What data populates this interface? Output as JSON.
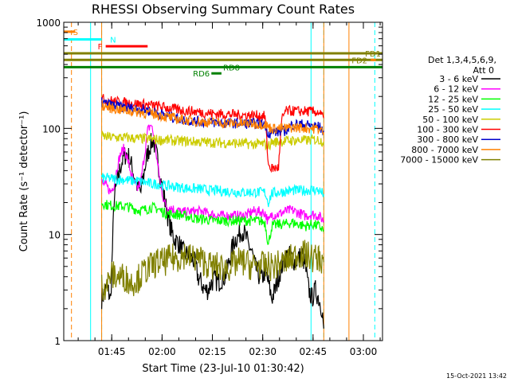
{
  "chart_data": {
    "type": "line",
    "title": "RHESSI Observing Summary Count Rates",
    "xlabel": "Start Time (23-Jul-10 01:30:42)",
    "ylabel": "Count Rate (s⁻¹ detector⁻¹)",
    "yscale": "log",
    "xlim": [
      0.0,
      95.0
    ],
    "ylim": [
      1,
      1000
    ],
    "x_ticks": [
      {
        "value": 14.3,
        "label": "01:45"
      },
      {
        "value": 29.3,
        "label": "02:00"
      },
      {
        "value": 44.3,
        "label": "02:15"
      },
      {
        "value": 59.3,
        "label": "02:30"
      },
      {
        "value": 74.3,
        "label": "02:45"
      },
      {
        "value": 89.3,
        "label": "03:00"
      }
    ],
    "y_ticks": [
      {
        "value": 1,
        "label": "1"
      },
      {
        "value": 10,
        "label": "10"
      },
      {
        "value": 100,
        "label": "100"
      },
      {
        "value": 1000,
        "label": "1000"
      }
    ],
    "legend_title": "Det 1,3,4,5,6,9,",
    "legend_subtitle": "Att 0",
    "footer": "15-Oct-2021 13:42",
    "series": [
      {
        "name": "3 - 6 keV",
        "color": "#000000",
        "x": [
          11.3,
          13,
          14,
          15,
          17,
          18,
          19,
          20,
          21,
          22,
          23,
          24,
          25,
          26,
          26.7,
          27,
          28,
          29,
          30,
          31,
          32,
          33,
          34,
          35,
          36,
          37,
          38,
          39,
          40,
          41,
          42,
          43,
          44,
          45,
          46,
          47,
          48,
          49,
          50,
          51,
          52,
          53,
          54,
          55,
          56,
          57,
          58,
          59,
          60,
          61,
          62,
          63,
          64,
          65,
          66,
          67,
          68,
          69,
          70,
          71,
          72,
          73,
          74,
          75,
          76,
          77,
          77.5
        ],
        "y": [
          2.5,
          3.2,
          2.4,
          22,
          45,
          55,
          58,
          47,
          36,
          28,
          25,
          40,
          58,
          72,
          80,
          70,
          50,
          32,
          22,
          15,
          11,
          9,
          8.5,
          7.5,
          6.5,
          6.5,
          6,
          5.5,
          4,
          3.5,
          3,
          3,
          3.5,
          3.8,
          3.5,
          3.8,
          4,
          5,
          7,
          9,
          9.5,
          11,
          10,
          8,
          7,
          5,
          4.2,
          3.8,
          4.5,
          3.5,
          2.5,
          3,
          4,
          5,
          6,
          6.5,
          6,
          5.5,
          6,
          6.5,
          5,
          3,
          2.5,
          3,
          2.5,
          2,
          1.3
        ]
      },
      {
        "name": "6 - 12 keV",
        "color": "#ff00ff",
        "x": [
          11.3,
          13,
          14,
          15,
          16,
          17,
          18,
          19,
          20,
          21,
          22,
          23,
          24,
          25,
          26,
          27,
          28,
          29,
          30,
          31,
          32,
          33,
          34,
          35,
          38,
          41,
          44,
          47,
          50,
          53,
          55,
          56,
          58,
          60,
          61,
          62,
          64,
          66,
          68,
          70,
          72,
          74,
          76,
          77.5
        ],
        "y": [
          31,
          28,
          25,
          30,
          45,
          58,
          65,
          52,
          38,
          30,
          27,
          32,
          55,
          95,
          110,
          80,
          45,
          28,
          20,
          18,
          18,
          17,
          17,
          16,
          16.5,
          16.5,
          15.5,
          15,
          15,
          15,
          15.5,
          16.5,
          16.5,
          16,
          13,
          15.5,
          15.5,
          16.5,
          17,
          16,
          15,
          15.5,
          15,
          13.5
        ]
      },
      {
        "name": "12 - 25 keV",
        "color": "#00ff00",
        "x": [
          11.3,
          13,
          16,
          18,
          20,
          22,
          24,
          26,
          28,
          30,
          32,
          34,
          36,
          38,
          40,
          42,
          44,
          46,
          48,
          50,
          52,
          54,
          56,
          58,
          60,
          61,
          62,
          64,
          66,
          68,
          70,
          72,
          74,
          76,
          77.5
        ],
        "y": [
          20,
          19,
          18.5,
          18.5,
          18,
          17,
          17,
          18,
          17.5,
          16,
          15.5,
          15.5,
          15,
          14.5,
          14,
          14,
          13.5,
          13.5,
          13.5,
          13.5,
          13.5,
          13.5,
          13.5,
          13.5,
          13,
          8,
          12,
          12.5,
          12.5,
          13,
          12.5,
          12,
          12.5,
          12,
          11
        ]
      },
      {
        "name": "25 - 50 keV",
        "color": "#00ffff",
        "x": [
          11.3,
          13,
          16,
          18,
          20,
          22,
          24,
          26,
          28,
          30,
          32,
          34,
          36,
          38,
          40,
          42,
          44,
          46,
          48,
          50,
          52,
          54,
          56,
          58,
          60,
          61,
          62,
          64,
          66,
          68,
          70,
          72,
          74,
          76,
          77.5
        ],
        "y": [
          34,
          34,
          33,
          33,
          32,
          32,
          31,
          30,
          30,
          29,
          28.5,
          28,
          27.5,
          27,
          27,
          26.5,
          26,
          26,
          25.5,
          25.5,
          25,
          25,
          25,
          25,
          25,
          20,
          24.5,
          25,
          25.5,
          26,
          26,
          26,
          26.5,
          26,
          24
        ]
      },
      {
        "name": "50 - 100 keV",
        "color": "#cccc00",
        "x": [
          11.3,
          13,
          16,
          18,
          20,
          22,
          24,
          26,
          28,
          30,
          32,
          34,
          36,
          38,
          40,
          42,
          44,
          46,
          48,
          50,
          52,
          54,
          56,
          58,
          60,
          61,
          62,
          64,
          66,
          68,
          70,
          72,
          74,
          76,
          77.5
        ],
        "y": [
          84,
          83,
          82,
          82,
          81,
          80,
          80,
          79,
          78,
          78,
          77,
          76,
          76,
          75,
          75,
          74,
          74,
          73,
          73,
          73,
          72,
          72,
          71,
          71,
          71,
          68,
          74,
          75,
          76,
          77,
          77,
          77,
          78,
          78,
          75
        ]
      },
      {
        "name": "100 - 300 keV",
        "color": "#ff0000",
        "x": [
          11.3,
          13,
          16,
          18,
          20,
          22,
          24,
          26,
          28,
          30,
          32,
          34,
          36,
          38,
          40,
          42,
          44,
          46,
          48,
          50,
          52,
          54,
          56,
          58,
          60,
          61,
          62,
          63,
          64,
          65,
          66,
          68,
          70,
          72,
          74,
          76,
          77.5
        ],
        "y": [
          190,
          185,
          178,
          175,
          172,
          170,
          168,
          165,
          162,
          158,
          154,
          150,
          147,
          145,
          143,
          140,
          138,
          137,
          136,
          135,
          134,
          133,
          133,
          132,
          130,
          45,
          42,
          42,
          43,
          120,
          145,
          146,
          145,
          145,
          144,
          142,
          125
        ]
      },
      {
        "name": "300 - 800 keV",
        "color": "#0000cc",
        "x": [
          11.3,
          13,
          16,
          18,
          20,
          22,
          24,
          26,
          28,
          30,
          32,
          34,
          36,
          38,
          40,
          42,
          44,
          46,
          48,
          50,
          52,
          54,
          56,
          58,
          60,
          61,
          62,
          64,
          66,
          68,
          70,
          72,
          74,
          76,
          77.5
        ],
        "y": [
          175,
          170,
          162,
          158,
          155,
          153,
          150,
          145,
          140,
          134,
          128,
          124,
          120,
          118,
          116,
          115,
          114,
          113,
          112,
          112,
          112,
          111,
          111,
          111,
          110,
          90,
          92,
          93,
          95,
          108,
          110,
          108,
          106,
          104,
          95
        ]
      },
      {
        "name": "800 - 7000 keV",
        "color": "#ff8000",
        "x": [
          11.3,
          13,
          16,
          18,
          20,
          22,
          24,
          26,
          28,
          30,
          32,
          34,
          36,
          38,
          40,
          42,
          44,
          46,
          48,
          50,
          52,
          54,
          56,
          58,
          60,
          61,
          62,
          64,
          66,
          68,
          70,
          72,
          74,
          76,
          77.5
        ],
        "y": [
          165,
          158,
          152,
          148,
          145,
          143,
          140,
          138,
          134,
          130,
          126,
          122,
          120,
          118,
          116,
          115,
          114,
          113,
          112,
          112,
          111,
          111,
          111,
          110,
          110,
          103,
          100,
          100,
          100,
          102,
          102,
          101,
          100,
          99,
          92
        ]
      },
      {
        "name": "7000 - 15000 keV",
        "color": "#808000",
        "x": [
          11.3,
          13,
          14,
          16,
          18,
          20,
          22,
          24,
          26,
          28,
          30,
          32,
          34,
          36,
          38,
          40,
          42,
          44,
          46,
          48,
          50,
          52,
          54,
          56,
          58,
          60,
          62,
          64,
          66,
          68,
          70,
          72,
          74,
          76,
          77.5
        ],
        "y": [
          3.2,
          3.4,
          4.2,
          4,
          4,
          3.5,
          3.8,
          4.5,
          5,
          5.5,
          5.5,
          6,
          6,
          6.5,
          6,
          6,
          5.5,
          5,
          5,
          4.8,
          5,
          5.5,
          5.5,
          5,
          5.2,
          5,
          5,
          5.2,
          5.5,
          6,
          6.5,
          6.5,
          6,
          6,
          5.5
        ]
      }
    ],
    "state_bars": [
      {
        "label": "S",
        "color": "#ff8000",
        "x": [
          0,
          3.4
        ],
        "y": 815
      },
      {
        "label": "N",
        "color": "#00ffff",
        "x": [
          0,
          11.3
        ],
        "y": 690
      },
      {
        "label": "F",
        "color": "#ff0000",
        "x": [
          12.5,
          25
        ],
        "y": 595
      },
      {
        "label": "FD1",
        "color": "#808000",
        "x": [
          0,
          95
        ],
        "y": 510
      },
      {
        "label": "FD2",
        "color": "#808000",
        "x": [
          0,
          95
        ],
        "y": 442
      },
      {
        "label": "RD8",
        "color": "#008000",
        "x": [
          0,
          95
        ],
        "y": 378
      },
      {
        "label": "RD6",
        "color": "#008000",
        "x": [
          44,
          47
        ],
        "y": 330
      }
    ],
    "vertical_markers": [
      {
        "color": "#ff8000",
        "style": "dashed",
        "x": 2.3
      },
      {
        "color": "#00ffff",
        "style": "solid",
        "x": 8.0
      },
      {
        "color": "#00ffff",
        "style": "dashed",
        "x": 11.3
      },
      {
        "color": "#ff8000",
        "style": "solid",
        "x": 11.3
      },
      {
        "color": "#00ffff",
        "style": "solid",
        "x": 73.7
      },
      {
        "color": "#00ffff",
        "style": "dashed",
        "x": 77.5
      },
      {
        "color": "#ff8000",
        "style": "solid",
        "x": 77.5
      },
      {
        "color": "#ff8000",
        "style": "solid",
        "x": 85.0
      },
      {
        "color": "#00ffff",
        "style": "dashed",
        "x": 92.7
      }
    ]
  }
}
